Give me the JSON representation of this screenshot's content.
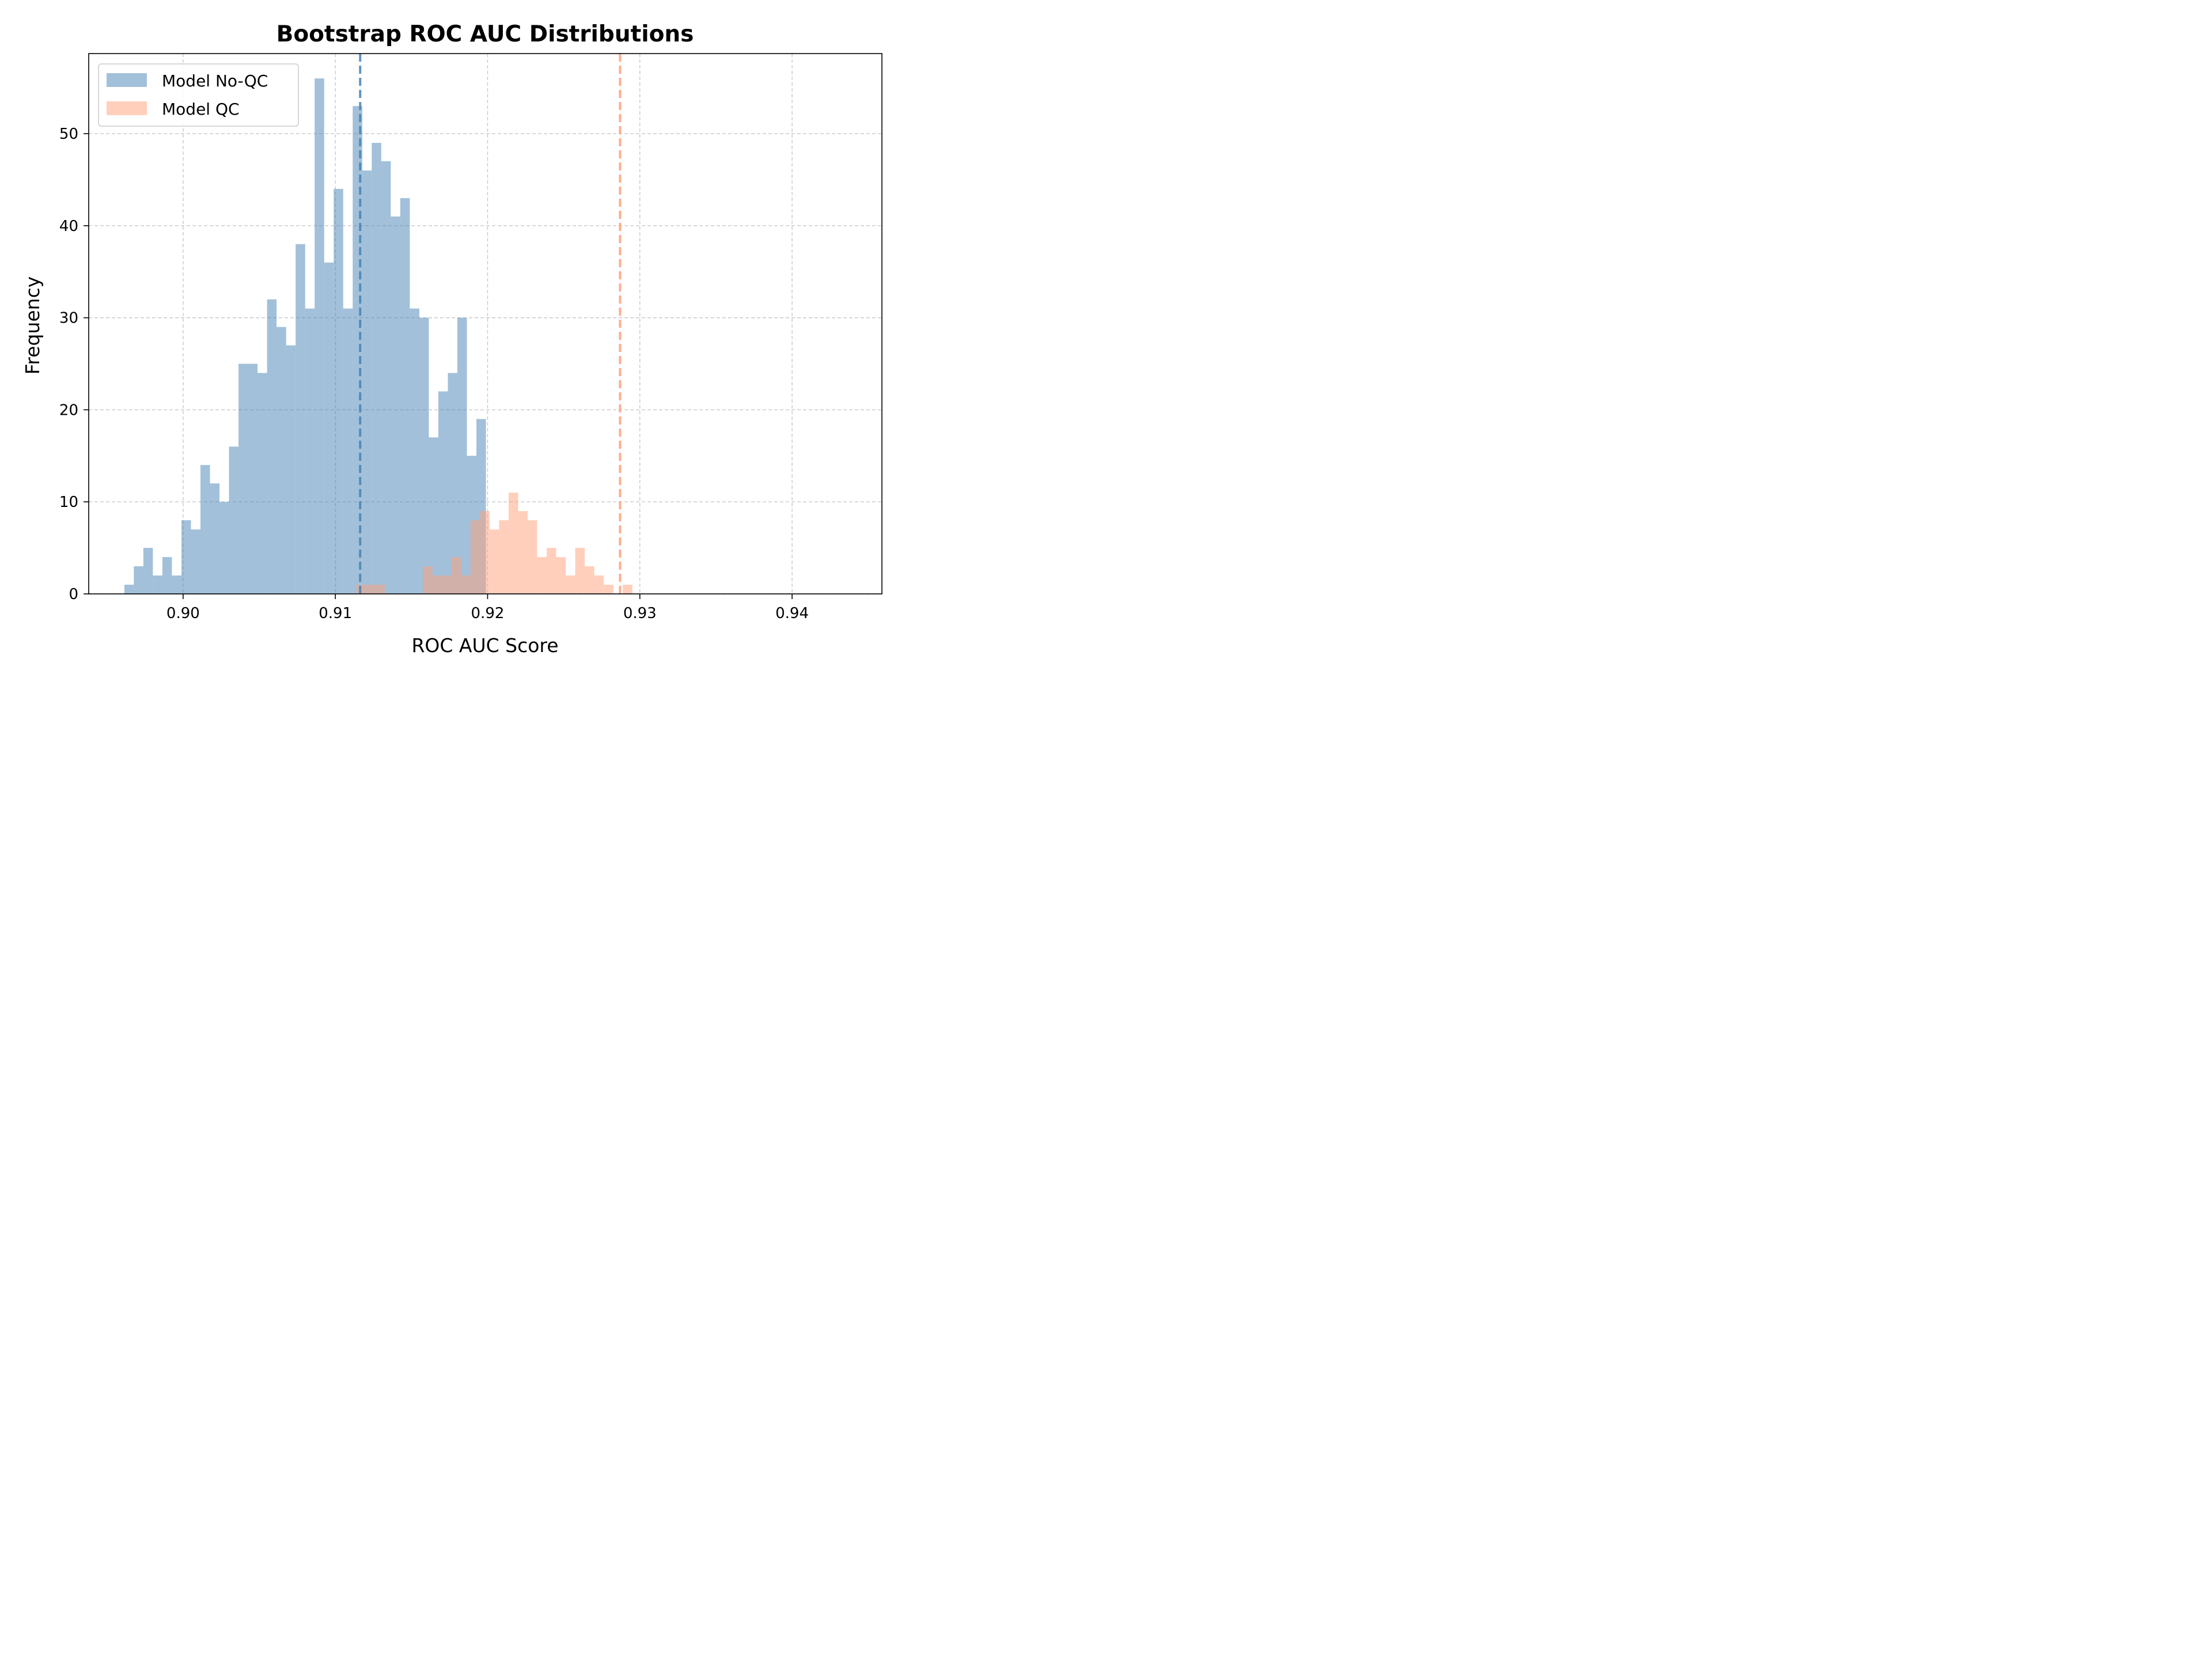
{
  "chart_data": {
    "type": "histogram",
    "title": "Bootstrap ROC AUC Distributions",
    "xlabel": "ROC AUC Score",
    "ylabel": "Frequency",
    "xlim": [
      0.8938,
      0.9459
    ],
    "ylim": [
      0,
      58.7
    ],
    "x_ticks": [
      0.9,
      0.91,
      0.92,
      0.93,
      0.94
    ],
    "x_tick_labels": [
      "0.90",
      "0.91",
      "0.92",
      "0.93",
      "0.94"
    ],
    "y_ticks": [
      0,
      10,
      20,
      30,
      40,
      50
    ],
    "y_tick_labels": [
      "0",
      "10",
      "20",
      "30",
      "40",
      "50"
    ],
    "grid": true,
    "legend_position": "top-left",
    "series": [
      {
        "name": "Model No-QC",
        "color": "#4682b4",
        "bin_start": 0.89614,
        "bin_width": 0.000625,
        "counts": [
          1,
          3,
          5,
          2,
          4,
          2,
          8,
          7,
          14,
          12,
          10,
          16,
          25,
          25,
          24,
          32,
          29,
          27,
          38,
          31,
          56,
          36,
          44,
          31,
          53,
          46,
          49,
          47,
          41,
          43,
          31,
          30,
          17,
          22,
          24,
          30,
          15,
          19
        ],
        "mean": 0.91163
      },
      {
        "name": "Model QC",
        "color": "#ffa07a",
        "bin_start": 0.91138,
        "bin_width": 0.000625,
        "counts": [
          1,
          1,
          1,
          0,
          0,
          0,
          0,
          3,
          2,
          2,
          4,
          2,
          8,
          9,
          7,
          8,
          11,
          9,
          8,
          4,
          5,
          4,
          2,
          5,
          3,
          2,
          1,
          0,
          1,
          0,
          0,
          0,
          0,
          0,
          0,
          0,
          0,
          0,
          0,
          0,
          0,
          0,
          0,
          0,
          0,
          0,
          0,
          0,
          0,
          0,
          0,
          0,
          0,
          0
        ],
        "mean": 0.9287
      }
    ]
  }
}
